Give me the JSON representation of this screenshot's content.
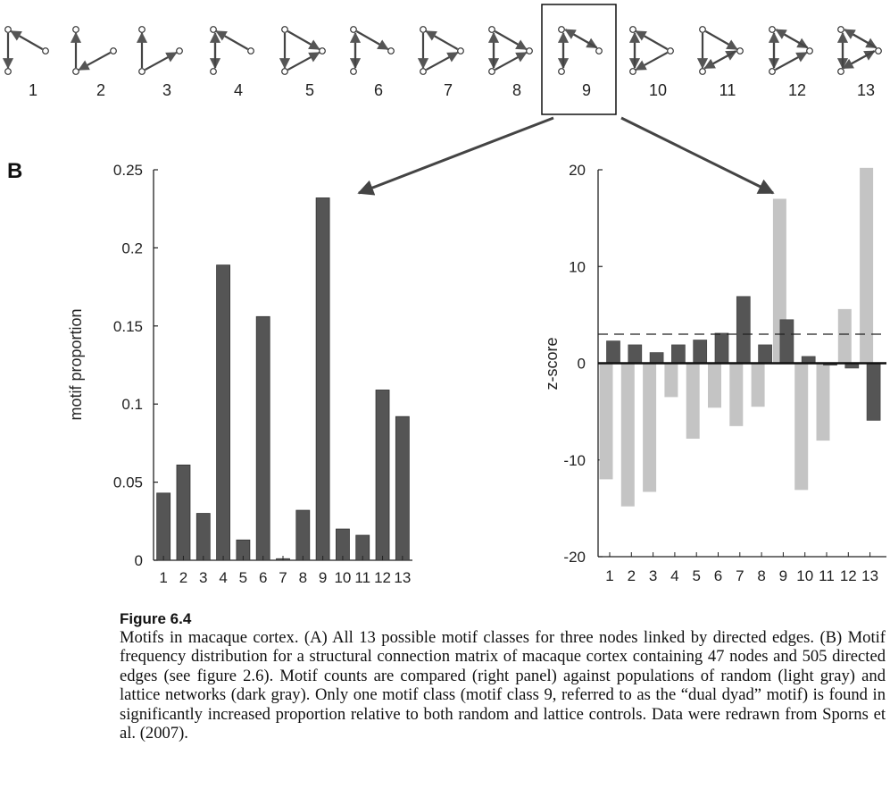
{
  "panel_label": "B",
  "motif_labels": [
    "1",
    "2",
    "3",
    "4",
    "5",
    "6",
    "7",
    "8",
    "9",
    "10",
    "11",
    "12",
    "13"
  ],
  "highlighted_motif": "9",
  "colors": {
    "dark": "#555555",
    "light": "#c4c4c4",
    "axis": "#222222"
  },
  "chart_data": [
    {
      "type": "bar",
      "ylabel": "motif proportion",
      "categories": [
        "1",
        "2",
        "3",
        "4",
        "5",
        "6",
        "7",
        "8",
        "9",
        "10",
        "11",
        "12",
        "13"
      ],
      "values": [
        0.043,
        0.061,
        0.03,
        0.189,
        0.013,
        0.156,
        0.001,
        0.032,
        0.232,
        0.02,
        0.016,
        0.109,
        0.092
      ],
      "ylim": [
        0,
        0.25
      ],
      "yticks": [
        0,
        0.05,
        0.1,
        0.15,
        0.2,
        0.25
      ],
      "ytick_labels": [
        "0",
        "0.05",
        "0.1",
        "0.15",
        "0.2",
        "0.25"
      ]
    },
    {
      "type": "bar",
      "ylabel": "z-score",
      "categories": [
        "1",
        "2",
        "3",
        "4",
        "5",
        "6",
        "7",
        "8",
        "9",
        "10",
        "11",
        "12",
        "13"
      ],
      "series": [
        {
          "name": "random (light gray)",
          "values": [
            -12,
            -14.8,
            -13.3,
            -3.5,
            -7.8,
            -4.6,
            -6.5,
            -4.5,
            17,
            -13.1,
            -8,
            5.6,
            20.2
          ]
        },
        {
          "name": "lattice (dark gray)",
          "values": [
            2.3,
            1.9,
            1.1,
            1.9,
            2.4,
            3.1,
            6.9,
            1.9,
            4.5,
            0.7,
            -0.2,
            -0.5,
            -5.9
          ]
        }
      ],
      "reference_line": 3,
      "ylim": [
        -20,
        20
      ],
      "yticks": [
        -20,
        -10,
        0,
        10,
        20
      ],
      "ytick_labels": [
        "-20",
        "-10",
        "0",
        "10",
        "20"
      ]
    }
  ],
  "caption": {
    "title": "Figure 6.4",
    "text": "Motifs in macaque cortex. (A) All 13 possible motif classes for three nodes linked by directed edges. (B) Motif frequency distribution for a structural connection matrix of macaque cortex containing 47 nodes and 505 directed edges (see figure 2.6). Motif counts are compared (right panel) against populations of random (light gray) and lattice networks (dark gray). Only one motif class (motif class 9, referred to as the “dual dyad” motif) is found in significantly increased proportion relative to both random and lattice controls. Data were redrawn from Sporns et al. (2007)."
  }
}
